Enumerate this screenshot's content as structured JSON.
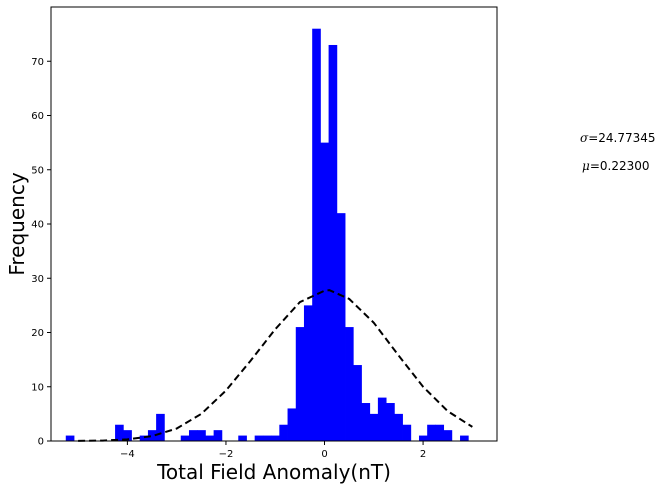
{
  "chart_data": {
    "type": "bar",
    "title": "",
    "xlabel": "Total Field Anomaly(nT)",
    "ylabel": "Frequency",
    "xlim": [
      -5.55,
      3.5
    ],
    "ylim": [
      0,
      80
    ],
    "xticks": [
      -4,
      -2,
      0,
      2
    ],
    "xtick_labels": [
      "−4",
      "−2",
      "0",
      "2"
    ],
    "yticks": [
      0,
      10,
      20,
      30,
      40,
      50,
      60,
      70
    ],
    "yticks_labels": [
      "0",
      "10",
      "20",
      "30",
      "40",
      "50",
      "60",
      "70"
    ],
    "grid": false,
    "bar_color": "#0000ff",
    "curve_color": "#000000",
    "bin_edges": [
      -5.25,
      -5.083,
      -4.917,
      -4.75,
      -4.583,
      -4.417,
      -4.25,
      -4.083,
      -3.917,
      -3.75,
      -3.583,
      -3.417,
      -3.25,
      -3.083,
      -2.917,
      -2.75,
      -2.583,
      -2.417,
      -2.25,
      -2.083,
      -1.917,
      -1.75,
      -1.583,
      -1.417,
      -1.25,
      -1.083,
      -0.917,
      -0.75,
      -0.583,
      -0.417,
      -0.25,
      -0.083,
      0.083,
      0.25,
      0.417,
      0.583,
      0.75,
      0.917,
      1.083,
      1.25,
      1.417,
      1.583,
      1.75,
      1.917,
      2.083,
      2.25,
      2.417,
      2.583,
      2.75,
      2.917,
      3.083
    ],
    "counts": [
      1,
      0,
      0,
      0,
      0,
      0,
      3,
      2,
      0,
      1,
      2,
      5,
      0,
      0,
      1,
      2,
      2,
      1,
      2,
      0,
      0,
      1,
      0,
      1,
      1,
      1,
      3,
      6,
      21,
      25,
      76,
      55,
      73,
      42,
      21,
      14,
      7,
      5,
      8,
      7,
      5,
      3,
      0,
      1,
      3,
      3,
      2,
      0,
      1,
      0,
      2
    ],
    "curve": {
      "style": "dashed",
      "x": [
        -5.0,
        -4.5,
        -4.0,
        -3.5,
        -3.0,
        -2.5,
        -2.0,
        -1.5,
        -1.0,
        -0.5,
        0.0,
        0.1,
        0.5,
        1.0,
        1.5,
        2.0,
        2.5,
        3.0
      ],
      "y": [
        0.02,
        0.08,
        0.3,
        0.9,
        2.3,
        5.0,
        9.3,
        14.8,
        20.6,
        25.6,
        27.7,
        27.8,
        26.2,
        21.8,
        15.8,
        10.0,
        5.5,
        2.6
      ]
    },
    "annotations": [
      {
        "symbol": "σ",
        "text": "=24.77345"
      },
      {
        "symbol": "μ",
        "text": "=0.22300"
      }
    ]
  }
}
